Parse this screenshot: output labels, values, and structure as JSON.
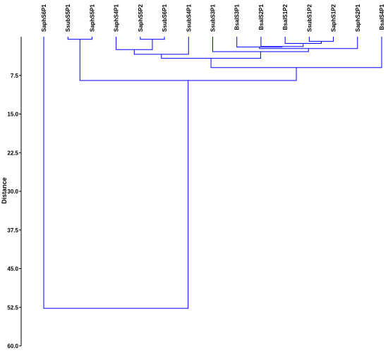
{
  "chart_data": {
    "type": "dendrogram",
    "ylabel": "Distance",
    "ylim": [
      0,
      60
    ],
    "yticks": [
      7.5,
      15.0,
      22.5,
      30.0,
      37.5,
      45.0,
      52.5,
      60.0
    ],
    "ytick_labels": [
      "7.5",
      "15.0",
      "22.5",
      "30.0",
      "37.5",
      "45.0",
      "52.5",
      "60.0"
    ],
    "line_color": "#0000ff",
    "leaves": [
      "SaphS6P1",
      "SsubS5P1",
      "SaphS5P1",
      "SaphS4P1",
      "SaphS5P2",
      "SsubS6P1",
      "SsubS4P1",
      "SsubS3P1",
      "BsalS3P1",
      "BsalS2P1",
      "BsalS1P2",
      "SsubS1P2",
      "SaphS1P2",
      "SaphS2P1",
      "BsalS4P1"
    ],
    "merges": [
      {
        "id": "m1",
        "children": [
          "SsubS5P1",
          "SaphS5P1"
        ],
        "height": 0.5
      },
      {
        "id": "m2",
        "children": [
          "SaphS5P2",
          "SsubS6P1"
        ],
        "height": 0.5
      },
      {
        "id": "m3",
        "children": [
          "SsubS1P2",
          "SaphS1P2"
        ],
        "height": 0.9
      },
      {
        "id": "m4",
        "children": [
          "BsalS1P2",
          "m3"
        ],
        "height": 1.3
      },
      {
        "id": "m5",
        "children": [
          "BsalS2P1",
          "m4"
        ],
        "height": 1.9
      },
      {
        "id": "m6",
        "children": [
          "BsalS3P1",
          "m5"
        ],
        "height": 2.0
      },
      {
        "id": "m7",
        "children": [
          "m6",
          "SaphS2P1"
        ],
        "height": 2.3
      },
      {
        "id": "m8",
        "children": [
          "SsubS3P1",
          "m7"
        ],
        "height": 2.9
      },
      {
        "id": "m9",
        "children": [
          "SaphS4P1",
          "m2"
        ],
        "height": 2.5
      },
      {
        "id": "m10",
        "children": [
          "m9",
          "SsubS4P1"
        ],
        "height": 3.4
      },
      {
        "id": "m11",
        "children": [
          "m10",
          "m8"
        ],
        "height": 4.2
      },
      {
        "id": "m12",
        "children": [
          "m11",
          "BsalS4P1"
        ],
        "height": 6.0
      },
      {
        "id": "m13",
        "children": [
          "m1",
          "m12"
        ],
        "height": 8.5
      },
      {
        "id": "m14",
        "children": [
          "SaphS6P1",
          "m13"
        ],
        "height": 52.7
      }
    ]
  }
}
